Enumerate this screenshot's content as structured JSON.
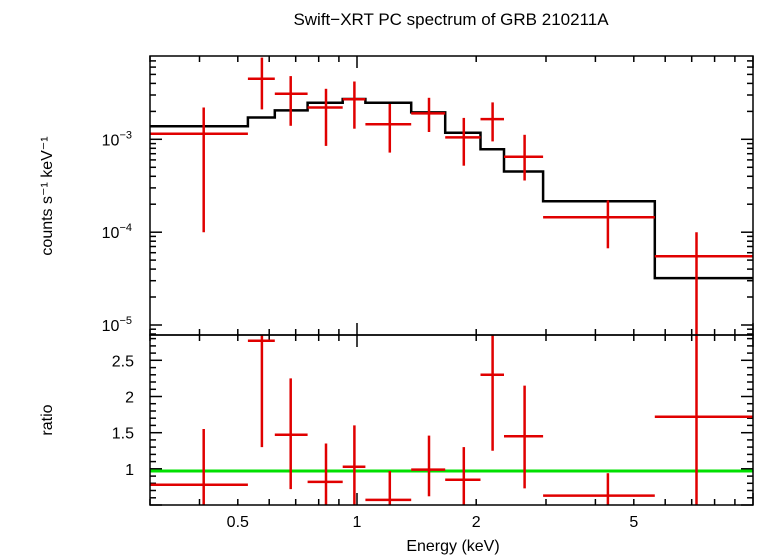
{
  "chart_data": [
    {
      "type": "line",
      "panel": "spectrum",
      "title": "Swift−XRT PC spectrum of GRB 210211A",
      "xlabel": "",
      "ylabel": "counts s⁻¹ keV⁻¹",
      "xscale": "log",
      "yscale": "log",
      "xlim": [
        0.3,
        10
      ],
      "ylim": [
        7.8e-06,
        0.0079
      ],
      "ytick_labels": [
        {
          "value": 0.001,
          "mantissa": "10",
          "exp": "−3"
        },
        {
          "value": 0.0001,
          "mantissa": "10",
          "exp": "−4"
        },
        {
          "value": 1e-05,
          "mantissa": "10",
          "exp": "−5"
        }
      ],
      "series": [
        {
          "kind": "data",
          "color": "#e00000",
          "points": [
            {
              "x": 0.41,
              "xlo": 0.3,
              "xhi": 0.53,
              "y": 0.00115,
              "ylo": 0.0001,
              "yhi": 0.0022
            },
            {
              "x": 0.575,
              "xlo": 0.53,
              "xhi": 0.62,
              "y": 0.0045,
              "ylo": 0.0021,
              "yhi": 0.0076
            },
            {
              "x": 0.68,
              "xlo": 0.62,
              "xhi": 0.75,
              "y": 0.0031,
              "ylo": 0.0014,
              "yhi": 0.0048
            },
            {
              "x": 0.835,
              "xlo": 0.75,
              "xhi": 0.92,
              "y": 0.0022,
              "ylo": 0.00085,
              "yhi": 0.0035
            },
            {
              "x": 0.985,
              "xlo": 0.92,
              "xhi": 1.05,
              "y": 0.0027,
              "ylo": 0.0013,
              "yhi": 0.0042
            },
            {
              "x": 1.21,
              "xlo": 1.05,
              "xhi": 1.37,
              "y": 0.00145,
              "ylo": 0.00072,
              "yhi": 0.0024
            },
            {
              "x": 1.52,
              "xlo": 1.37,
              "xhi": 1.67,
              "y": 0.0019,
              "ylo": 0.0012,
              "yhi": 0.0028
            },
            {
              "x": 1.86,
              "xlo": 1.67,
              "xhi": 2.05,
              "y": 0.00105,
              "ylo": 0.00052,
              "yhi": 0.0017
            },
            {
              "x": 2.2,
              "xlo": 2.05,
              "xhi": 2.35,
              "y": 0.00165,
              "ylo": 0.00095,
              "yhi": 0.0025
            },
            {
              "x": 2.65,
              "xlo": 2.35,
              "xhi": 2.95,
              "y": 0.00065,
              "ylo": 0.00036,
              "yhi": 0.00112
            },
            {
              "x": 4.3,
              "xlo": 2.95,
              "xhi": 5.65,
              "y": 0.000145,
              "ylo": 6.7e-05,
              "yhi": 0.00022
            },
            {
              "x": 7.2,
              "xlo": 5.65,
              "xhi": 10.0,
              "y": 5.5e-05,
              "ylo": 7.8e-06,
              "yhi": 0.0001
            }
          ]
        },
        {
          "kind": "model",
          "color": "#000000",
          "steps": [
            {
              "xlo": 0.3,
              "xhi": 0.53,
              "y": 0.00138
            },
            {
              "xlo": 0.53,
              "xhi": 0.62,
              "y": 0.00172
            },
            {
              "xlo": 0.62,
              "xhi": 0.75,
              "y": 0.00205
            },
            {
              "xlo": 0.75,
              "xhi": 0.92,
              "y": 0.00248
            },
            {
              "xlo": 0.92,
              "xhi": 1.05,
              "y": 0.00272
            },
            {
              "xlo": 1.05,
              "xhi": 1.37,
              "y": 0.00248
            },
            {
              "xlo": 1.37,
              "xhi": 1.67,
              "y": 0.00195
            },
            {
              "xlo": 1.67,
              "xhi": 2.05,
              "y": 0.00118
            },
            {
              "xlo": 2.05,
              "xhi": 2.35,
              "y": 0.00078
            },
            {
              "xlo": 2.35,
              "xhi": 2.95,
              "y": 0.00045
            },
            {
              "xlo": 2.95,
              "xhi": 5.65,
              "y": 0.000215
            },
            {
              "xlo": 5.65,
              "xhi": 10.0,
              "y": 3.2e-05
            }
          ]
        }
      ]
    },
    {
      "type": "scatter",
      "panel": "ratio",
      "xlabel": "Energy (keV)",
      "ylabel": "ratio",
      "xscale": "log",
      "yscale": "linear",
      "xlim": [
        0.3,
        10
      ],
      "ylim": [
        0.5,
        2.85
      ],
      "xtick_labels": [
        {
          "value": 0.5,
          "label": "0.5"
        },
        {
          "value": 1,
          "label": "1"
        },
        {
          "value": 2,
          "label": "2"
        },
        {
          "value": 5,
          "label": "5"
        }
      ],
      "ytick_labels": [
        {
          "value": 1,
          "label": "1"
        },
        {
          "value": 1.5,
          "label": "1.5"
        },
        {
          "value": 2,
          "label": "2"
        },
        {
          "value": 2.5,
          "label": "2.5"
        }
      ],
      "reference_line": {
        "y": 0.97,
        "color": "#00e000"
      },
      "series": [
        {
          "kind": "data",
          "color": "#e00000",
          "points": [
            {
              "x": 0.41,
              "xlo": 0.3,
              "xhi": 0.53,
              "y": 0.78,
              "ylo": 0.5,
              "yhi": 1.55
            },
            {
              "x": 0.575,
              "xlo": 0.53,
              "xhi": 0.62,
              "y": 2.77,
              "ylo": 1.3,
              "yhi": 2.85
            },
            {
              "x": 0.68,
              "xlo": 0.62,
              "xhi": 0.75,
              "y": 1.47,
              "ylo": 0.72,
              "yhi": 2.25
            },
            {
              "x": 0.835,
              "xlo": 0.75,
              "xhi": 0.92,
              "y": 0.82,
              "ylo": 0.5,
              "yhi": 1.35
            },
            {
              "x": 0.985,
              "xlo": 0.92,
              "xhi": 1.05,
              "y": 1.03,
              "ylo": 0.5,
              "yhi": 1.6
            },
            {
              "x": 1.21,
              "xlo": 1.05,
              "xhi": 1.37,
              "y": 0.57,
              "ylo": 0.5,
              "yhi": 0.97
            },
            {
              "x": 1.52,
              "xlo": 1.37,
              "xhi": 1.67,
              "y": 0.99,
              "ylo": 0.62,
              "yhi": 1.46
            },
            {
              "x": 1.86,
              "xlo": 1.67,
              "xhi": 2.05,
              "y": 0.85,
              "ylo": 0.5,
              "yhi": 1.3
            },
            {
              "x": 2.2,
              "xlo": 2.05,
              "xhi": 2.35,
              "y": 2.3,
              "ylo": 1.25,
              "yhi": 2.85
            },
            {
              "x": 2.65,
              "xlo": 2.35,
              "xhi": 2.95,
              "y": 1.45,
              "ylo": 0.73,
              "yhi": 2.15
            },
            {
              "x": 4.3,
              "xlo": 2.95,
              "xhi": 5.65,
              "y": 0.63,
              "ylo": 0.5,
              "yhi": 0.94
            },
            {
              "x": 7.2,
              "xlo": 5.65,
              "xhi": 10.0,
              "y": 1.72,
              "ylo": 0.5,
              "yhi": 2.85
            }
          ]
        }
      ]
    }
  ]
}
